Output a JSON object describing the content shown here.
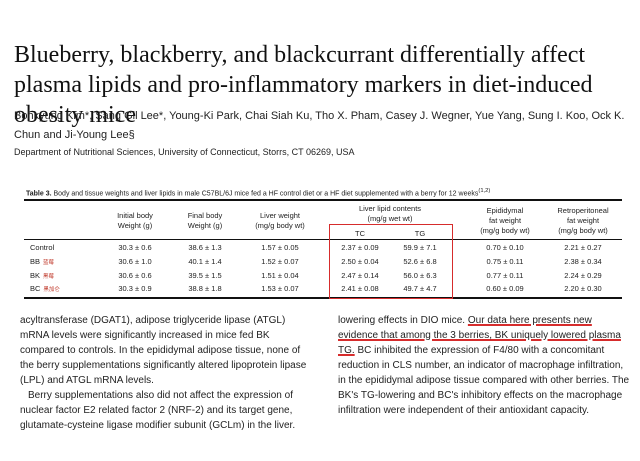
{
  "paper": {
    "title": "Blueberry, blackberry, and blackcurrant differentially affect plasma lipids and pro-inflammatory markers in diet-induced obesity mice",
    "authors": "Bohkyung Kim*, Sang Gil Lee*, Young-Ki Park, Chai Siah Ku, Tho X. Pham, Casey J. Wegner, Yue Yang, Sung I. Koo, Ock K. Chun and Ji-Young Lee§",
    "affiliation": "Department of Nutritional Sciences, University of Connecticut, Storrs, CT 06269, USA"
  },
  "table": {
    "caption_label": "Table 3.",
    "caption_text": " Body and tissue weights and liver lipids in male C57BL/6J mice fed a HF control diet or a HF diet supplemented with a berry for 12 weeks",
    "caption_sup": "(1,2)",
    "headers": {
      "initial": [
        "Initial body",
        "Weight (g)"
      ],
      "final": [
        "Final body",
        "Weight (g)"
      ],
      "liver": [
        "Liver weight",
        "(mg/g body wt)"
      ],
      "lipids": [
        "Liver lipid contents",
        "(mg/g wet wt)"
      ],
      "tc": "TC",
      "tg": "TG",
      "epi": [
        "Epididymal",
        "fat weight",
        "(mg/g body wt)"
      ],
      "retro": [
        "Retroperitoneal",
        "fat weight",
        "(mg/g body wt)"
      ]
    },
    "rows": [
      {
        "label": "Control",
        "cn": "",
        "initial": "30.3 ± 0.6",
        "final": "38.6 ± 1.3",
        "liver": "1.57 ± 0.05",
        "tc": "2.37 ± 0.09",
        "tg": "59.9 ± 7.1",
        "epi": "0.70 ± 0.10",
        "retro": "2.21 ± 0.27"
      },
      {
        "label": "BB",
        "cn": "蓝莓",
        "initial": "30.6 ± 1.0",
        "final": "40.1 ± 1.4",
        "liver": "1.52 ± 0.07",
        "tc": "2.50 ± 0.04",
        "tg": "52.6 ± 6.8",
        "epi": "0.75 ± 0.11",
        "retro": "2.38 ± 0.34"
      },
      {
        "label": "BK",
        "cn": "黑莓",
        "initial": "30.6 ± 0.6",
        "final": "39.5 ± 1.5",
        "liver": "1.51 ± 0.04",
        "tc": "2.47 ± 0.14",
        "tg": "56.0 ± 6.3",
        "epi": "0.77 ± 0.11",
        "retro": "2.24 ± 0.29"
      },
      {
        "label": "BC",
        "cn": "黑加仑",
        "initial": "30.3 ± 0.9",
        "final": "38.8 ± 1.8",
        "liver": "1.53 ± 0.07",
        "tc": "2.41 ± 0.08",
        "tg": "49.7 ± 4.7",
        "epi": "0.60 ± 0.09",
        "retro": "2.20 ± 0.30"
      }
    ]
  },
  "body": {
    "left_p1": "acyltransferase (DGAT1), adipose triglyceride lipase (ATGL) mRNA levels were significantly increased in mice fed BK compared to controls. In the epididymal adipose tissue, none of the berry supplementations significantly altered lipoprotein lipase (LPL) and ATGL mRNA levels.",
    "left_p2": "Berry supplementations also did not affect the expression of nuclear factor E2 related factor 2 (NRF-2) and its target gene, glutamate-cysteine ligase modifier subunit (GCLm) in the liver.",
    "right_pre": "lowering effects in DIO mice. ",
    "right_highlight": "Our data here presents new evidence that among the 3 berries, BK uniquely lowered plasma TG.",
    "right_post": " BC inhibited the expression of F4/80 with a concomitant reduction in CLS number, an indicator of macrophage infiltration, in the epididymal adipose tissue compared with other berries. The BK's TG-lowering and BC's inhibitory effects on the macrophage infiltration were independent of their antioxidant capacity."
  },
  "colors": {
    "highlight": "#d62c2c",
    "chinese_labels": "#c0392b",
    "text": "#222222"
  }
}
